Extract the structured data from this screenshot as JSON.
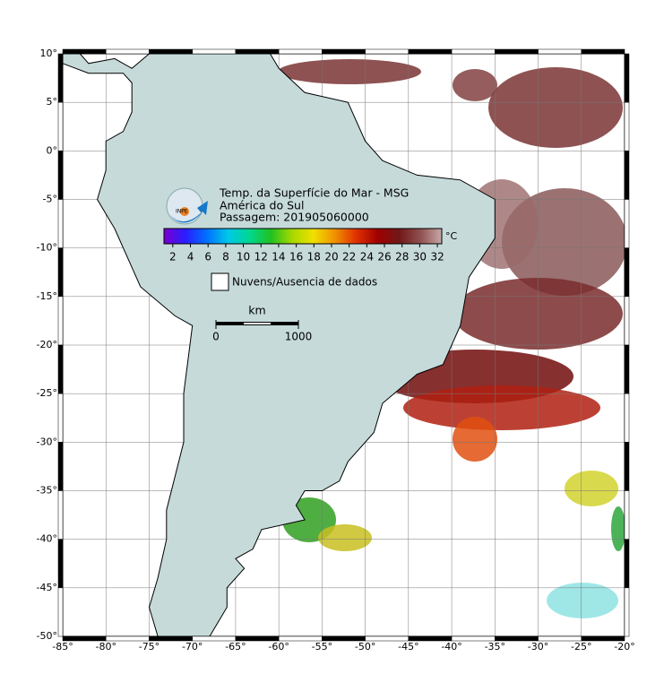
{
  "map": {
    "title": "Temp. da Superfície do Mar - MSG",
    "region": "América do Sul",
    "pass": "Passagem: 201905060000",
    "lonlim": [
      -85,
      -20
    ],
    "latlim": [
      -50,
      10
    ],
    "lon_ticks": [
      {
        "value": -85,
        "label": "-85°"
      },
      {
        "value": -80,
        "label": "-80°"
      },
      {
        "value": -75,
        "label": "-75°"
      },
      {
        "value": -70,
        "label": "-70°"
      },
      {
        "value": -65,
        "label": "-65°"
      },
      {
        "value": -60,
        "label": "-60°"
      },
      {
        "value": -55,
        "label": "-55°"
      },
      {
        "value": -50,
        "label": "-50°"
      },
      {
        "value": -45,
        "label": "-45°"
      },
      {
        "value": -40,
        "label": "-40°"
      },
      {
        "value": -35,
        "label": "-35°"
      },
      {
        "value": -30,
        "label": "-30°"
      },
      {
        "value": -25,
        "label": "-25°"
      },
      {
        "value": -20,
        "label": "-20°"
      }
    ],
    "lat_ticks": [
      {
        "value": 10,
        "label": "10°"
      },
      {
        "value": 5,
        "label": "5°"
      },
      {
        "value": 0,
        "label": "0°"
      },
      {
        "value": -5,
        "label": "-5°"
      },
      {
        "value": -10,
        "label": "-10°"
      },
      {
        "value": -15,
        "label": "-15°"
      },
      {
        "value": -20,
        "label": "-20°"
      },
      {
        "value": -25,
        "label": "-25°"
      },
      {
        "value": -30,
        "label": "-30°"
      },
      {
        "value": -35,
        "label": "-35°"
      },
      {
        "value": -40,
        "label": "-40°"
      },
      {
        "value": -45,
        "label": "-45°"
      },
      {
        "value": -50,
        "label": "-50°"
      }
    ],
    "colorbar": {
      "range": [
        1,
        32.5
      ],
      "ticks": [
        2,
        4,
        6,
        8,
        10,
        12,
        14,
        16,
        18,
        20,
        22,
        24,
        26,
        28,
        30,
        32
      ],
      "unit": "°C",
      "colors": [
        "#7a00d0",
        "#2a1cff",
        "#0070ff",
        "#00c8e8",
        "#00d890",
        "#20c020",
        "#a8d800",
        "#f0e000",
        "#f09000",
        "#e03000",
        "#a00000",
        "#701818",
        "#905050",
        "#c8a8a8"
      ]
    },
    "legend": "Nuvens/Ausencia de dados",
    "scale_bar": {
      "unit": "km",
      "ticks": [
        0,
        1000
      ]
    }
  }
}
